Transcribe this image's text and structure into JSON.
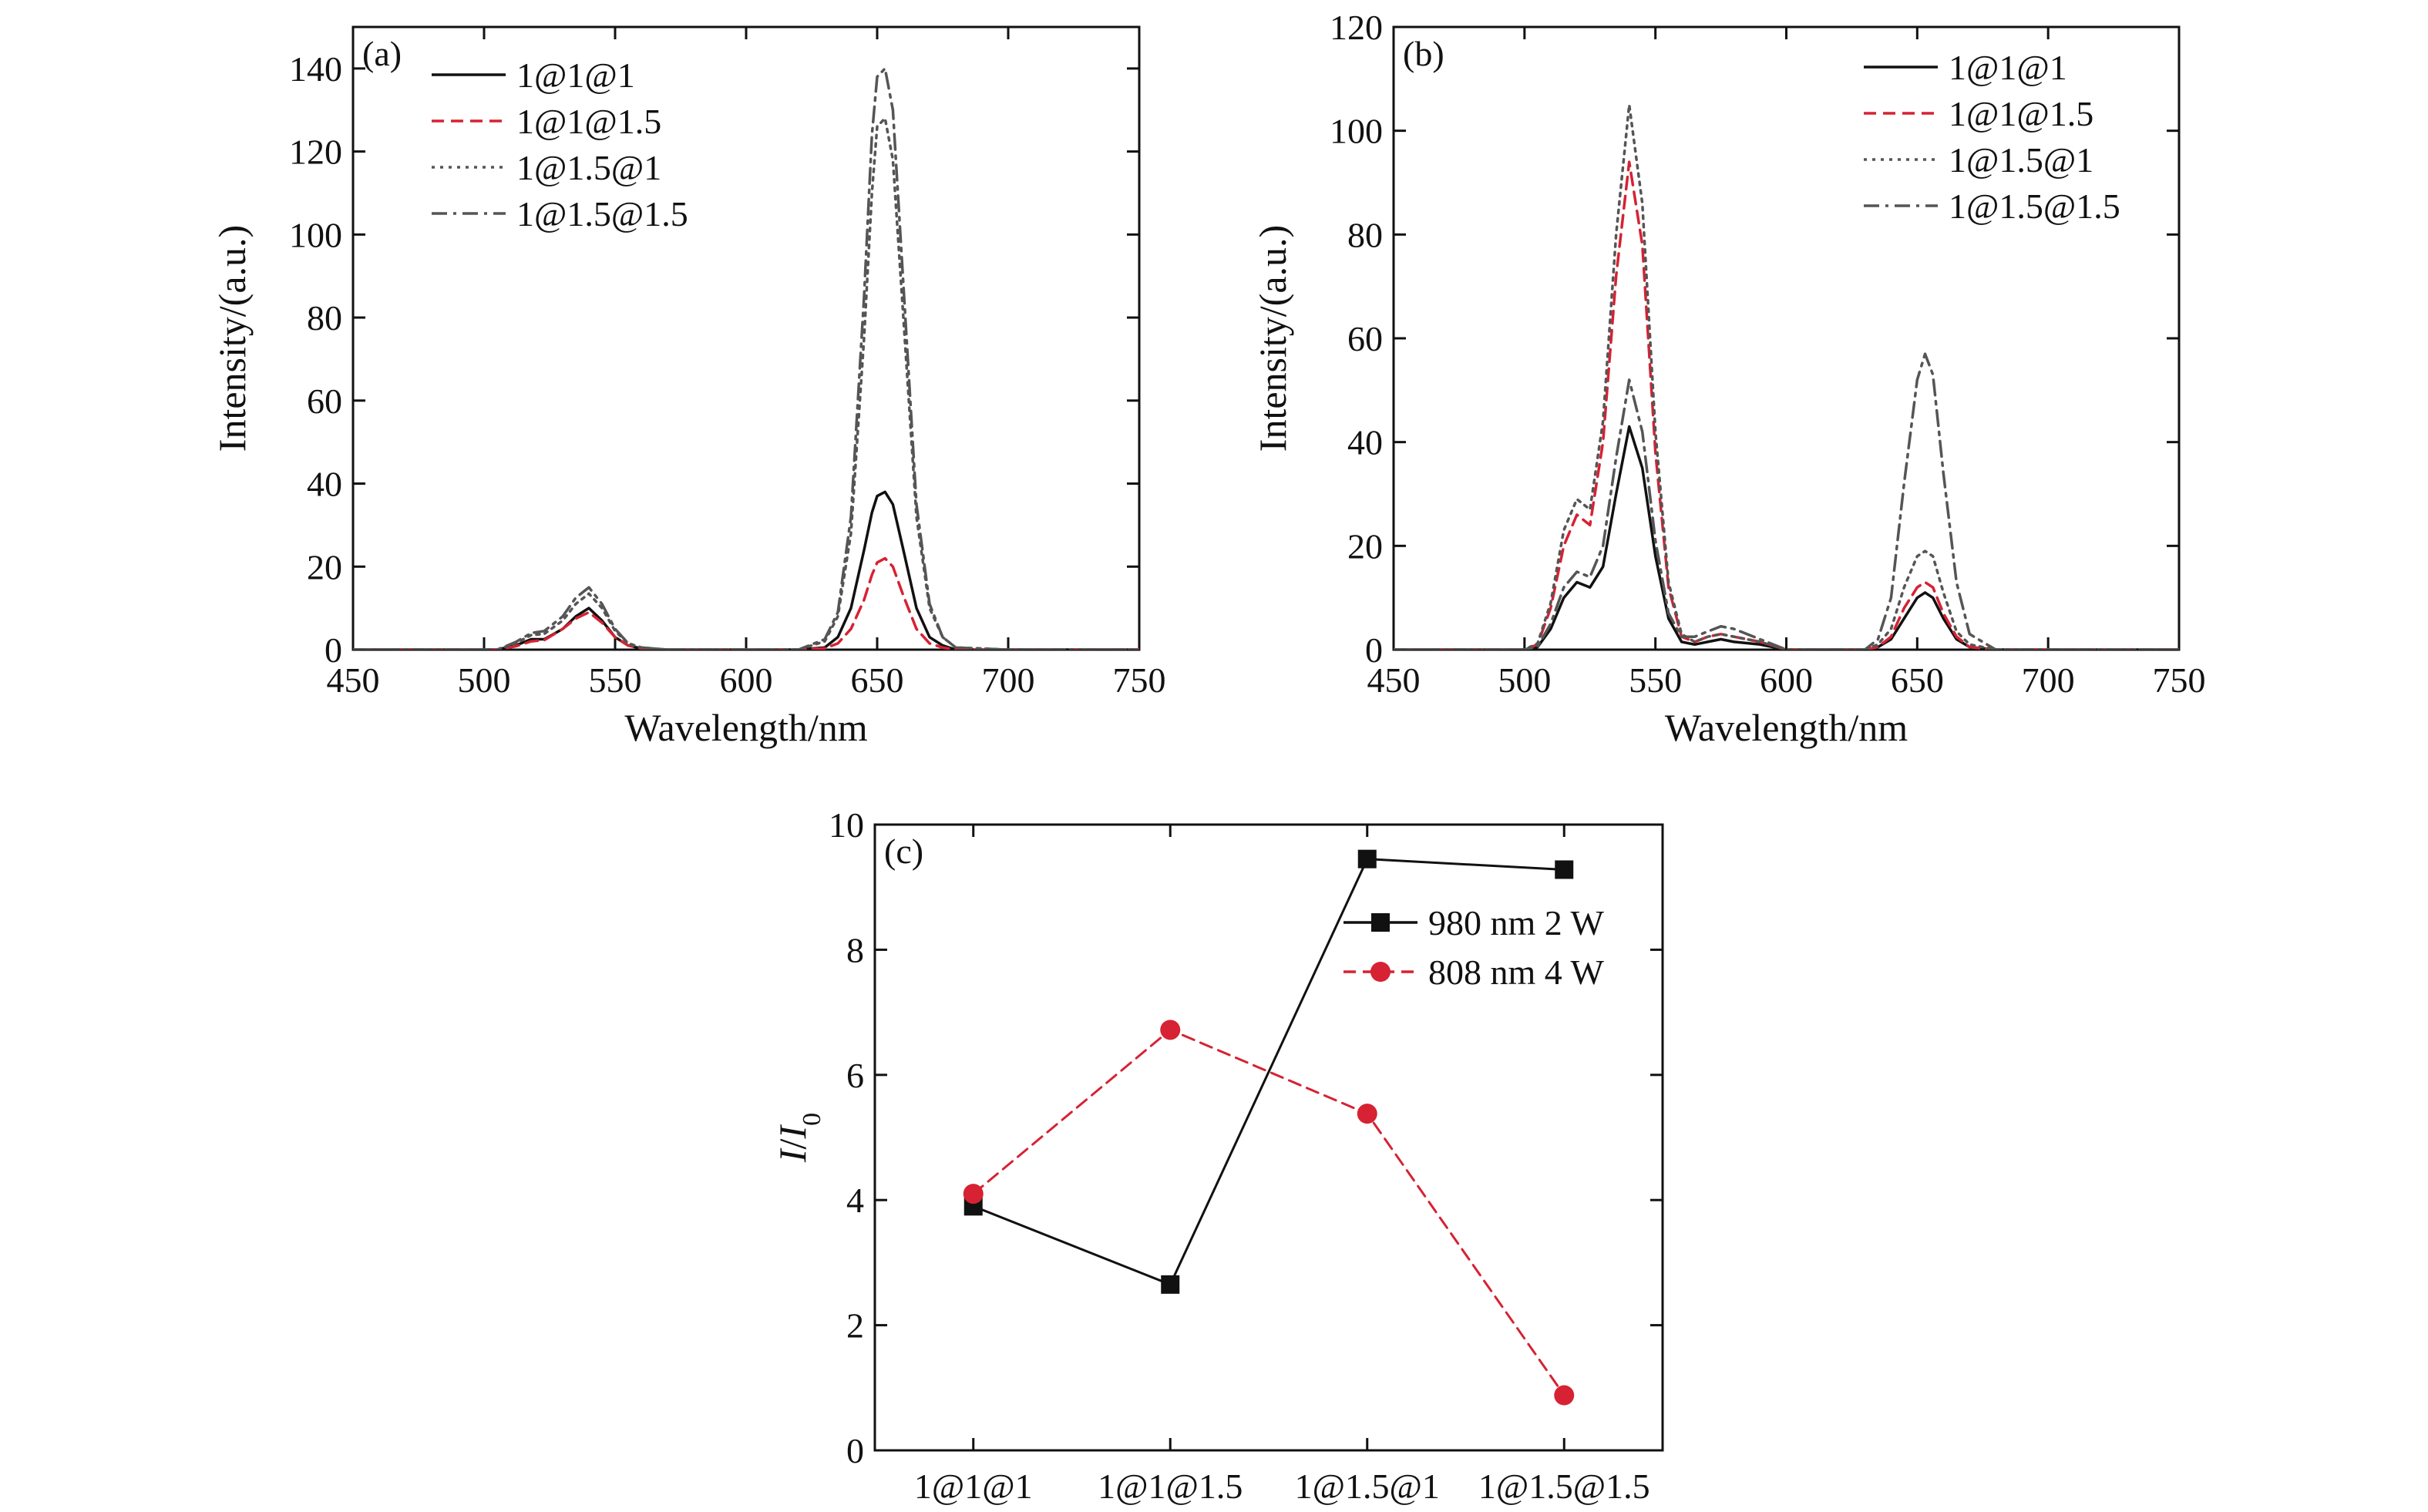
{
  "chart_data": [
    {
      "panel": "(a)",
      "type": "line",
      "xlabel": "Wavelength/nm",
      "ylabel": "Intensity/(a.u.)",
      "xlim": [
        450,
        750
      ],
      "ylim": [
        0,
        150
      ],
      "xticks": [
        450,
        500,
        550,
        600,
        650,
        700,
        750
      ],
      "yticks": [
        0,
        20,
        40,
        60,
        80,
        100,
        120,
        140
      ],
      "legend": "top-left",
      "grid": false,
      "series": [
        {
          "name": "1@1@1",
          "color": "#111111",
          "dash": "solid",
          "x": [
            450,
            505,
            512,
            518,
            523,
            530,
            535,
            540,
            545,
            550,
            555,
            560,
            570,
            620,
            630,
            635,
            640,
            645,
            648,
            650,
            653,
            656,
            660,
            665,
            670,
            675,
            680,
            700,
            750
          ],
          "y": [
            0,
            0,
            1,
            2.5,
            2.5,
            5,
            8,
            10,
            7,
            3,
            1,
            0.3,
            0,
            0,
            0.5,
            3,
            10,
            24,
            33,
            37,
            38,
            35,
            24,
            10,
            3,
            1,
            0,
            0,
            0
          ]
        },
        {
          "name": "1@1@1.5",
          "color": "#d62233",
          "dash": "dashed",
          "x": [
            450,
            505,
            512,
            518,
            523,
            530,
            535,
            540,
            545,
            550,
            555,
            560,
            570,
            620,
            630,
            635,
            640,
            645,
            648,
            650,
            653,
            656,
            660,
            665,
            670,
            675,
            680,
            700,
            750
          ],
          "y": [
            0,
            0,
            0.8,
            2,
            2.3,
            5,
            7.5,
            9,
            6.5,
            3,
            1,
            0.3,
            0,
            0,
            0.3,
            1.5,
            5,
            12,
            18,
            21,
            22,
            20,
            13,
            5,
            1.5,
            0.5,
            0,
            0,
            0
          ]
        },
        {
          "name": "1@1.5@1",
          "color": "#555555",
          "dash": "dotted",
          "x": [
            450,
            505,
            512,
            518,
            523,
            530,
            535,
            540,
            545,
            550,
            555,
            560,
            570,
            620,
            630,
            635,
            640,
            645,
            648,
            650,
            653,
            656,
            660,
            665,
            670,
            675,
            680,
            700,
            750
          ],
          "y": [
            0,
            0,
            1.5,
            3.5,
            3.8,
            7,
            11,
            13.5,
            10,
            4.5,
            1.5,
            0.5,
            0,
            0,
            2,
            8,
            28,
            75,
            110,
            126,
            128,
            118,
            80,
            32,
            10,
            3,
            0.5,
            0,
            0
          ]
        },
        {
          "name": "1@1.5@1.5",
          "color": "#555555",
          "dash": "dashdot",
          "x": [
            450,
            505,
            512,
            518,
            523,
            530,
            535,
            540,
            545,
            550,
            555,
            560,
            570,
            620,
            630,
            635,
            640,
            645,
            648,
            650,
            653,
            656,
            660,
            665,
            670,
            675,
            680,
            700,
            750
          ],
          "y": [
            0,
            0,
            1.8,
            4,
            4.5,
            8,
            12.5,
            15,
            11,
            5,
            1.5,
            0.5,
            0,
            0,
            2.5,
            9,
            32,
            85,
            124,
            138,
            140,
            130,
            88,
            35,
            11,
            3,
            0.5,
            0,
            0
          ]
        }
      ]
    },
    {
      "panel": "(b)",
      "type": "line",
      "xlabel": "Wavelength/nm",
      "ylabel": "Intensity/(a.u.)",
      "xlim": [
        450,
        750
      ],
      "ylim": [
        0,
        120
      ],
      "xticks": [
        450,
        500,
        550,
        600,
        650,
        700,
        750
      ],
      "yticks": [
        0,
        20,
        40,
        60,
        80,
        100,
        120
      ],
      "legend": "top-right",
      "grid": false,
      "series": [
        {
          "name": "1@1@1",
          "color": "#111111",
          "dash": "solid",
          "x": [
            450,
            500,
            505,
            510,
            515,
            520,
            525,
            530,
            535,
            540,
            545,
            550,
            555,
            560,
            565,
            570,
            575,
            580,
            590,
            600,
            630,
            635,
            640,
            645,
            650,
            653,
            656,
            660,
            665,
            670,
            680,
            750
          ],
          "y": [
            0,
            0,
            0.5,
            4,
            10,
            13,
            12,
            16,
            30,
            43,
            35,
            18,
            6,
            1.5,
            1,
            1.5,
            2,
            1.5,
            1,
            0,
            0,
            0.5,
            2,
            6,
            10,
            11,
            10,
            6,
            2,
            0.5,
            0,
            0
          ]
        },
        {
          "name": "1@1@1.5",
          "color": "#d62233",
          "dash": "dashed",
          "x": [
            450,
            500,
            505,
            510,
            515,
            520,
            525,
            530,
            535,
            540,
            545,
            550,
            555,
            560,
            565,
            570,
            575,
            580,
            590,
            600,
            630,
            635,
            640,
            645,
            650,
            653,
            656,
            660,
            665,
            670,
            680,
            750
          ],
          "y": [
            0,
            0,
            1,
            8,
            20,
            26,
            24,
            40,
            72,
            94,
            78,
            38,
            12,
            2.5,
            1.5,
            2.5,
            3,
            2.5,
            1.5,
            0,
            0,
            0.5,
            2.5,
            8,
            12,
            13,
            12,
            7,
            2.5,
            0.5,
            0,
            0
          ]
        },
        {
          "name": "1@1.5@1",
          "color": "#555555",
          "dash": "dotted",
          "x": [
            450,
            500,
            505,
            510,
            515,
            520,
            525,
            530,
            535,
            540,
            545,
            550,
            555,
            560,
            565,
            570,
            575,
            580,
            590,
            600,
            630,
            635,
            640,
            645,
            650,
            653,
            656,
            660,
            665,
            670,
            680,
            750
          ],
          "y": [
            0,
            0,
            1.2,
            9,
            23,
            29,
            27,
            44,
            80,
            105,
            86,
            42,
            13,
            3,
            1.5,
            2.5,
            3,
            2.5,
            1.5,
            0,
            0,
            1,
            4,
            12,
            18,
            19,
            18,
            11,
            3.5,
            1,
            0,
            0
          ]
        },
        {
          "name": "1@1.5@1.5",
          "color": "#555555",
          "dash": "dashdot",
          "x": [
            450,
            500,
            505,
            510,
            515,
            520,
            525,
            530,
            535,
            540,
            545,
            550,
            555,
            560,
            565,
            570,
            575,
            580,
            590,
            600,
            630,
            635,
            640,
            645,
            650,
            653,
            656,
            660,
            665,
            670,
            680,
            750
          ],
          "y": [
            0,
            0,
            0.6,
            5,
            12,
            15,
            14,
            20,
            37,
            52,
            42,
            21,
            7,
            2.5,
            2.5,
            3.5,
            4.5,
            4,
            2,
            0,
            0,
            2,
            10,
            32,
            52,
            57,
            53,
            34,
            13,
            3,
            0,
            0
          ]
        }
      ]
    },
    {
      "panel": "(c)",
      "type": "line",
      "xlabel": "",
      "ylabel_italic": "I",
      "ylabel_slash": "/",
      "ylabel_italic2": "I",
      "ylabel_sub": "0",
      "categories": [
        "1@1@1",
        "1@1@1.5",
        "1@1.5@1",
        "1@1.5@1.5"
      ],
      "ylim": [
        0,
        10
      ],
      "yticks": [
        0,
        2,
        4,
        6,
        8,
        10
      ],
      "legend": "top-right",
      "grid": false,
      "series": [
        {
          "name": "980 nm 2 W",
          "color": "#111111",
          "dash": "solid",
          "marker": "square",
          "values": [
            3.9,
            2.65,
            9.45,
            9.28
          ]
        },
        {
          "name": "808 nm 4 W",
          "color": "#d62233",
          "dash": "dashed",
          "marker": "circle",
          "values": [
            4.1,
            6.72,
            5.38,
            0.88
          ]
        }
      ]
    }
  ]
}
